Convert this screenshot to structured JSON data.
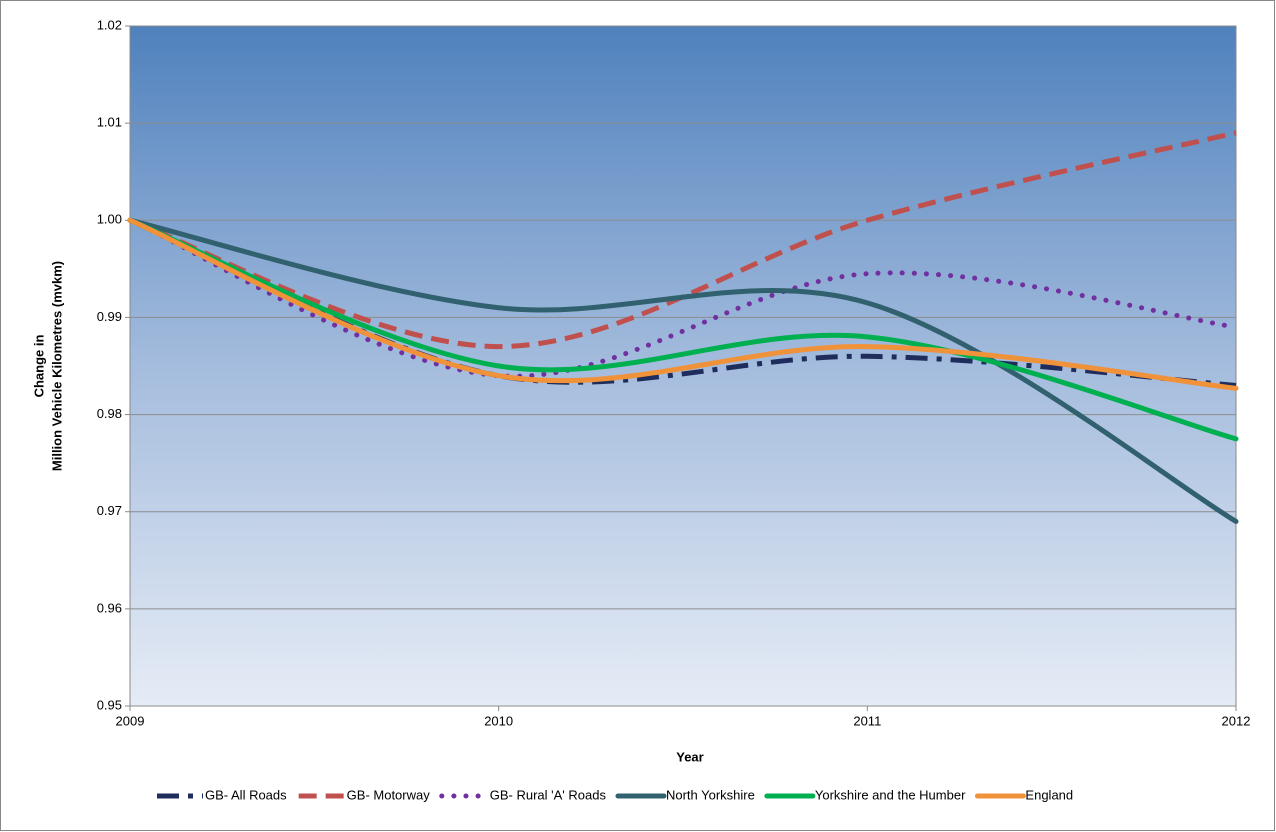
{
  "chart_data": {
    "type": "line",
    "x_label": "Year",
    "y_label": [
      "Change in",
      "Million Vehicle Kilometres (mvkm)"
    ],
    "x": [
      2009,
      2010,
      2011,
      2012
    ],
    "xlim": [
      2009,
      2012
    ],
    "xticks": [
      2009,
      2010,
      2011,
      2012
    ],
    "ylim": [
      0.95,
      1.02
    ],
    "yticks": [
      0.95,
      0.96,
      0.97,
      0.98,
      0.99,
      {
        "value": 1,
        "label": "1.00"
      },
      1.01,
      1.02
    ],
    "grid": true,
    "smooth": true,
    "legend": "bottom",
    "series": [
      {
        "name": "GB- All Roads",
        "color": "#1f2d5c",
        "dash": "long-dash-dot",
        "values": [
          1.0,
          0.984,
          0.986,
          0.983
        ]
      },
      {
        "name": "GB- Motorway",
        "color": "#c0504d",
        "dash": "dash",
        "values": [
          1.0,
          0.987,
          1.0,
          1.009
        ]
      },
      {
        "name": "GB- Rural 'A' Roads",
        "color": "#7030a0",
        "dash": "dot",
        "values": [
          1.0,
          0.984,
          0.9945,
          0.989
        ]
      },
      {
        "name": "North Yorkshire",
        "color": "#31606f",
        "dash": "solid",
        "values": [
          1.0,
          0.991,
          0.9915,
          0.969
        ]
      },
      {
        "name": "Yorkshire and the Humber",
        "color": "#00b050",
        "dash": "solid",
        "values": [
          1.0,
          0.985,
          0.988,
          0.9775
        ]
      },
      {
        "name": "England",
        "color": "#f0923a",
        "dash": "solid",
        "values": [
          1.0,
          0.984,
          0.987,
          0.9827
        ]
      }
    ]
  }
}
